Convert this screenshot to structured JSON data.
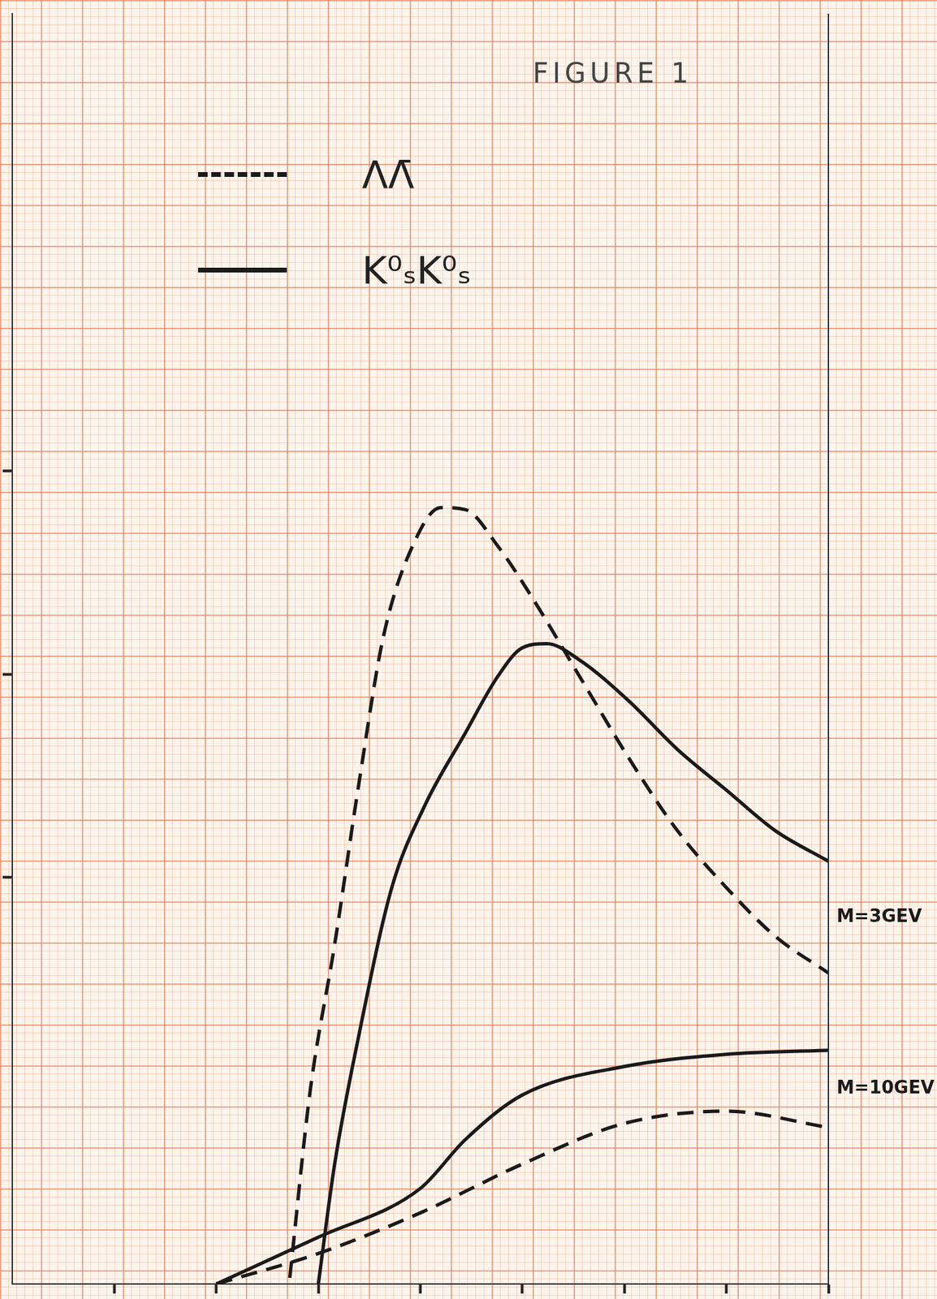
{
  "chart_data": {
    "type": "line",
    "title": "FIGURE 1",
    "xlim": [
      -2,
      6
    ],
    "xticks": [
      -1,
      0,
      1,
      2,
      3,
      4,
      5,
      6
    ],
    "ylim": [
      0,
      6.25
    ],
    "yticks": [
      2,
      3,
      4
    ],
    "grid": false,
    "tick_labels": false,
    "legend": "top-left",
    "series": [
      {
        "name": "ΛΛ̄",
        "curve": "M=3GEV",
        "line_style": "dashed",
        "color": "#1a1a1a",
        "x": [
          0.72,
          0.92,
          1.16,
          1.4,
          1.64,
          1.96,
          2.2,
          2.44,
          2.76,
          3.08,
          3.56,
          4.04,
          4.52,
          5.0,
          5.48,
          6.0
        ],
        "values": [
          0.03,
          0.95,
          1.67,
          2.47,
          3.19,
          3.67,
          3.82,
          3.81,
          3.63,
          3.39,
          2.99,
          2.59,
          2.23,
          1.95,
          1.71,
          1.53
        ]
      },
      {
        "name": "K⁰ₛK⁰ₛ",
        "curve": "M=3GEV",
        "line_style": "solid",
        "color": "#1a1a1a",
        "x": [
          1.0,
          1.16,
          1.4,
          1.72,
          2.04,
          2.44,
          2.76,
          3.0,
          3.24,
          3.56,
          4.04,
          4.52,
          5.0,
          5.48,
          6.0
        ],
        "values": [
          0.0,
          0.59,
          1.23,
          1.95,
          2.35,
          2.71,
          2.99,
          3.13,
          3.15,
          3.07,
          2.87,
          2.63,
          2.43,
          2.23,
          2.08
        ]
      },
      {
        "name": "K⁰ₛK⁰ₛ",
        "curve": "M=10GEV",
        "line_style": "solid",
        "color": "#1a1a1a",
        "x": [
          0.0,
          1.0,
          2.0,
          2.44,
          3.0,
          4.0,
          5.0,
          6.0
        ],
        "values": [
          0.0,
          0.23,
          0.47,
          0.71,
          0.93,
          1.07,
          1.13,
          1.15
        ]
      },
      {
        "name": "ΛΛ̄",
        "curve": "M=10GEV",
        "line_style": "dashed",
        "color": "#1a1a1a",
        "x": [
          0.0,
          1.0,
          2.0,
          3.0,
          4.0,
          5.0,
          6.0
        ],
        "values": [
          0.0,
          0.15,
          0.35,
          0.59,
          0.79,
          0.85,
          0.77
        ]
      }
    ]
  }
}
